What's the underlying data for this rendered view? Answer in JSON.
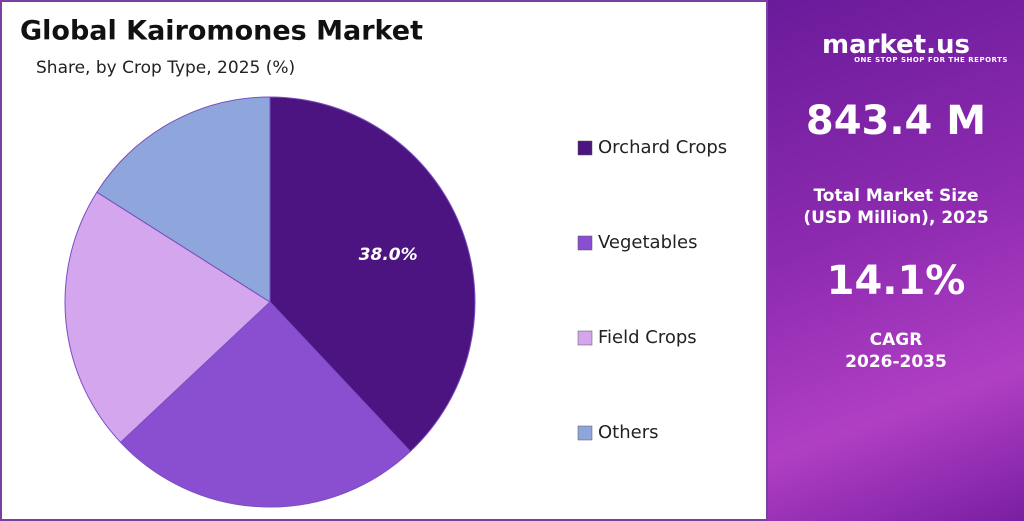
{
  "chart_data": {
    "type": "pie",
    "title": "Global Kairomones Market",
    "subtitle": "Share, by Crop Type, 2025 (%)",
    "categories": [
      "Orchard Crops",
      "Vegetables",
      "Field Crops",
      "Others"
    ],
    "values": [
      38.0,
      25,
      21,
      16
    ],
    "value_labels": [
      "38.0%",
      null,
      null,
      null
    ],
    "colors": [
      "#4b1480",
      "#8a4fd0",
      "#d3a6ee",
      "#8fa6dc"
    ],
    "legend": "right"
  },
  "panel": {
    "brand": "market.us",
    "tagline": "ONE STOP SHOP FOR THE REPORTS",
    "market_size": "843.4 M",
    "market_size_label": [
      "Total Market Size",
      "(USD Million), 2025"
    ],
    "cagr": "14.1%",
    "cagr_label": [
      "CAGR",
      "2026-2035"
    ]
  }
}
